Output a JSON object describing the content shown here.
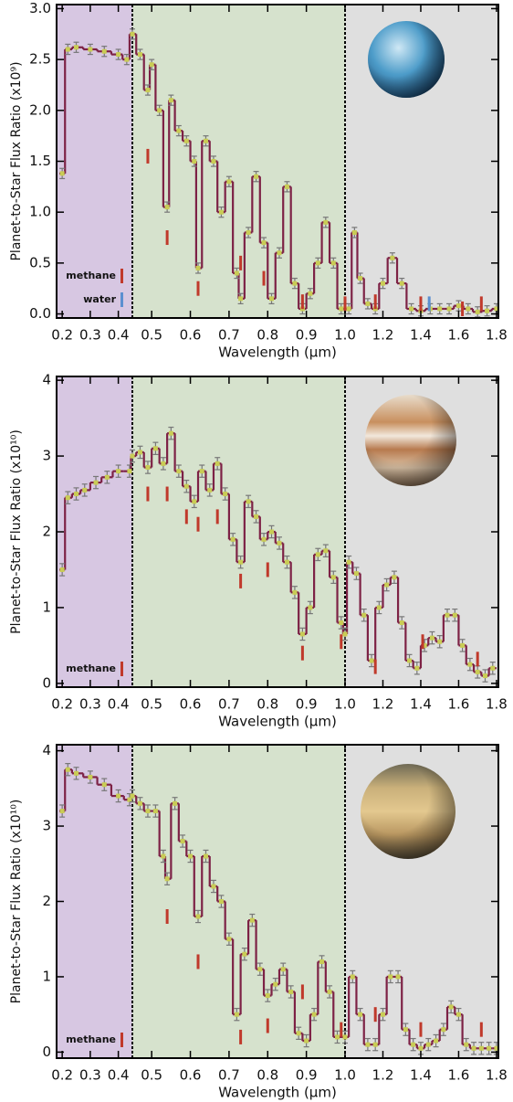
{
  "chart_data": [
    {
      "type": "step",
      "y_label": "Planet-to-Star Flux Ratio (x10⁹)",
      "x_label": "Wavelength (μm)",
      "xlim": [
        0.18,
        1.81
      ],
      "ylim": [
        -0.04,
        3.04
      ],
      "xticks": [
        0.2,
        0.3,
        0.4,
        0.5,
        0.6,
        0.7,
        0.8,
        0.9,
        {
          "value": 1,
          "label": "1.0"
        },
        1.2,
        1.4,
        1.6,
        1.8
      ],
      "yticks": [
        {
          "value": 0,
          "label": "0.0"
        },
        0.5,
        {
          "value": 1,
          "label": "1.0"
        },
        1.5,
        {
          "value": 2,
          "label": "2.0"
        },
        2.5,
        {
          "value": 3,
          "label": "3.0"
        }
      ],
      "region_edges": [
        0.45,
        1.0
      ],
      "region_colors": [
        "#d7c7e2",
        "#d6e2cd",
        "#dfdfdf"
      ],
      "color": "#7d2145",
      "point_color": "#c9cc55",
      "yerr": 0.05,
      "x": [
        0.2,
        0.22,
        0.25,
        0.3,
        0.35,
        0.4,
        0.43,
        0.45,
        0.47,
        0.49,
        0.5,
        0.52,
        0.54,
        0.55,
        0.57,
        0.59,
        0.61,
        0.62,
        0.64,
        0.66,
        0.68,
        0.7,
        0.72,
        0.73,
        0.75,
        0.77,
        0.79,
        0.81,
        0.83,
        0.85,
        0.87,
        0.89,
        0.91,
        0.93,
        0.95,
        0.97,
        0.99,
        1.02,
        1.05,
        1.08,
        1.12,
        1.16,
        1.2,
        1.25,
        1.3,
        1.35,
        1.4,
        1.45,
        1.5,
        1.55,
        1.6,
        1.65,
        1.7,
        1.75,
        1.8
      ],
      "values": [
        1.38,
        2.6,
        2.62,
        2.6,
        2.58,
        2.55,
        2.5,
        2.75,
        2.55,
        2.2,
        2.45,
        2.0,
        1.05,
        2.1,
        1.8,
        1.7,
        1.5,
        0.45,
        1.7,
        1.5,
        1.0,
        1.3,
        0.4,
        0.15,
        0.8,
        1.35,
        0.7,
        0.15,
        0.6,
        1.25,
        0.3,
        0.05,
        0.2,
        0.5,
        0.9,
        0.5,
        0.05,
        0.05,
        0.8,
        0.35,
        0.1,
        0.05,
        0.3,
        0.55,
        0.3,
        0.05,
        0.03,
        0.05,
        0.05,
        0.05,
        0.08,
        0.05,
        0.02,
        0.03,
        0.05
      ],
      "markers": [
        {
          "name": "methane",
          "color": "#c0392b",
          "x": [
            0.49,
            0.54,
            0.62,
            0.73,
            0.79,
            0.89,
            1.0,
            1.16,
            1.4,
            1.62,
            1.72
          ],
          "values": [
            1.55,
            0.75,
            0.25,
            0.5,
            0.35,
            0.12,
            0.1,
            0.12,
            0.1,
            0.05,
            0.1
          ]
        },
        {
          "name": "water",
          "color": "#5b8fd0",
          "x": [
            1.43
          ],
          "values": [
            0.1
          ]
        }
      ]
    },
    {
      "type": "step",
      "y_label": "Planet-to-Star Flux Ratio (x10¹⁰)",
      "x_label": "Wavelength (μm)",
      "xlim": [
        0.18,
        1.81
      ],
      "ylim": [
        -0.05,
        4.05
      ],
      "xticks": [
        0.2,
        0.3,
        0.4,
        0.5,
        0.6,
        0.7,
        0.8,
        0.9,
        {
          "value": 1,
          "label": "1.0"
        },
        1.2,
        1.4,
        1.6,
        1.8
      ],
      "yticks": [
        0,
        1,
        2,
        3,
        4
      ],
      "region_edges": [
        0.45,
        1.0
      ],
      "region_colors": [
        "#d7c7e2",
        "#d6e2cd",
        "#dfdfdf"
      ],
      "color": "#7d2145",
      "point_color": "#c9cc55",
      "yerr": 0.08,
      "x": [
        0.2,
        0.22,
        0.25,
        0.28,
        0.32,
        0.36,
        0.4,
        0.44,
        0.45,
        0.47,
        0.49,
        0.51,
        0.53,
        0.55,
        0.57,
        0.59,
        0.61,
        0.63,
        0.65,
        0.67,
        0.69,
        0.71,
        0.73,
        0.75,
        0.77,
        0.79,
        0.81,
        0.83,
        0.85,
        0.87,
        0.89,
        0.91,
        0.93,
        0.95,
        0.97,
        0.99,
        1.0,
        1.02,
        1.06,
        1.1,
        1.14,
        1.18,
        1.22,
        1.26,
        1.3,
        1.34,
        1.38,
        1.42,
        1.46,
        1.5,
        1.54,
        1.58,
        1.62,
        1.66,
        1.7,
        1.74,
        1.78
      ],
      "values": [
        1.5,
        2.45,
        2.5,
        2.55,
        2.65,
        2.72,
        2.8,
        2.8,
        3.0,
        3.05,
        2.85,
        3.1,
        2.9,
        3.3,
        2.8,
        2.6,
        2.4,
        2.8,
        2.55,
        2.9,
        2.5,
        1.9,
        1.6,
        2.4,
        2.2,
        1.9,
        2.0,
        1.85,
        1.6,
        1.2,
        0.65,
        1.0,
        1.7,
        1.75,
        1.4,
        0.8,
        0.65,
        1.6,
        1.45,
        0.9,
        0.3,
        1.0,
        1.3,
        1.4,
        0.8,
        0.3,
        0.2,
        0.5,
        0.6,
        0.55,
        0.9,
        0.9,
        0.5,
        0.25,
        0.15,
        0.1,
        0.2
      ],
      "markers": [
        {
          "name": "methane",
          "color": "#c0392b",
          "x": [
            0.49,
            0.54,
            0.59,
            0.62,
            0.67,
            0.73,
            0.8,
            0.89,
            0.99,
            1.16,
            1.41,
            1.7
          ],
          "values": [
            2.5,
            2.5,
            2.2,
            2.1,
            2.2,
            1.35,
            1.5,
            0.4,
            0.55,
            0.22,
            0.55,
            0.32
          ]
        }
      ]
    },
    {
      "type": "step",
      "y_label": "Planet-to-Star Flux Ratio (x10¹⁰)",
      "x_label": "Wavelength (μm)",
      "xlim": [
        0.18,
        1.81
      ],
      "ylim": [
        -0.08,
        4.08
      ],
      "xticks": [
        0.2,
        0.3,
        0.4,
        0.5,
        0.6,
        0.7,
        0.8,
        0.9,
        {
          "value": 1,
          "label": "1.0"
        },
        1.2,
        1.4,
        1.6,
        1.8
      ],
      "yticks": [
        0,
        1,
        2,
        3,
        4
      ],
      "region_edges": [
        0.45,
        1.0
      ],
      "region_colors": [
        "#d7c7e2",
        "#d6e2cd",
        "#dfdfdf"
      ],
      "color": "#7d2145",
      "point_color": "#c9cc55",
      "yerr": 0.08,
      "x": [
        0.2,
        0.22,
        0.25,
        0.3,
        0.35,
        0.4,
        0.44,
        0.45,
        0.47,
        0.49,
        0.51,
        0.53,
        0.54,
        0.56,
        0.58,
        0.6,
        0.62,
        0.64,
        0.66,
        0.68,
        0.7,
        0.72,
        0.74,
        0.76,
        0.78,
        0.8,
        0.82,
        0.84,
        0.86,
        0.88,
        0.9,
        0.92,
        0.94,
        0.96,
        0.98,
        1.0,
        1.04,
        1.08,
        1.12,
        1.16,
        1.2,
        1.24,
        1.28,
        1.32,
        1.36,
        1.4,
        1.44,
        1.48,
        1.52,
        1.56,
        1.6,
        1.64,
        1.68,
        1.72,
        1.76,
        1.8
      ],
      "values": [
        3.2,
        3.75,
        3.7,
        3.65,
        3.55,
        3.4,
        3.35,
        3.4,
        3.3,
        3.2,
        3.2,
        2.6,
        2.3,
        3.3,
        2.8,
        2.6,
        1.8,
        2.6,
        2.2,
        2.0,
        1.5,
        0.5,
        1.3,
        1.75,
        1.1,
        0.75,
        0.9,
        1.1,
        0.8,
        0.25,
        0.15,
        0.5,
        1.2,
        0.8,
        0.2,
        0.2,
        1.0,
        0.5,
        0.1,
        0.1,
        0.5,
        1.0,
        1.0,
        0.3,
        0.1,
        0.05,
        0.1,
        0.15,
        0.3,
        0.6,
        0.5,
        0.1,
        0.05,
        0.05,
        0.05,
        0.05
      ],
      "markers": [
        {
          "name": "methane",
          "color": "#c0392b",
          "x": [
            0.54,
            0.62,
            0.73,
            0.8,
            0.89,
            0.99,
            1.16,
            1.4,
            1.72
          ],
          "values": [
            1.8,
            1.2,
            0.2,
            0.35,
            0.8,
            0.3,
            0.5,
            0.3,
            0.3
          ]
        }
      ]
    }
  ]
}
